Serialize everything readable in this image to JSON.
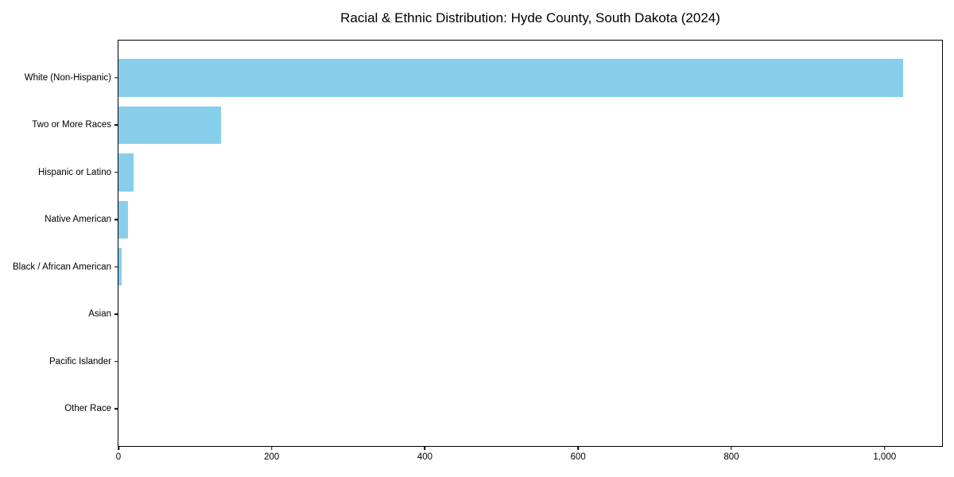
{
  "chart_data": {
    "type": "bar",
    "orientation": "horizontal",
    "title": "Racial & Ethnic Distribution: Hyde County, South Dakota (2024)",
    "categories": [
      "White (Non-Hispanic)",
      "Two or More Races",
      "Hispanic or Latino",
      "Native American",
      "Black / African American",
      "Asian",
      "Pacific Islander",
      "Other Race"
    ],
    "values": [
      1024,
      134,
      20,
      12,
      4,
      0,
      0,
      0
    ],
    "xlabel": "",
    "ylabel": "",
    "xlim": [
      0,
      1075
    ],
    "x_ticks": [
      {
        "value": 0,
        "label": "0"
      },
      {
        "value": 200,
        "label": "200"
      },
      {
        "value": 400,
        "label": "400"
      },
      {
        "value": 600,
        "label": "600"
      },
      {
        "value": 800,
        "label": "800"
      },
      {
        "value": 1000,
        "label": "1,000"
      }
    ],
    "bar_color": "#87CEEB",
    "axis_color": "#000000",
    "grid": false,
    "legend": "none",
    "bar_height_fraction": 0.8
  }
}
